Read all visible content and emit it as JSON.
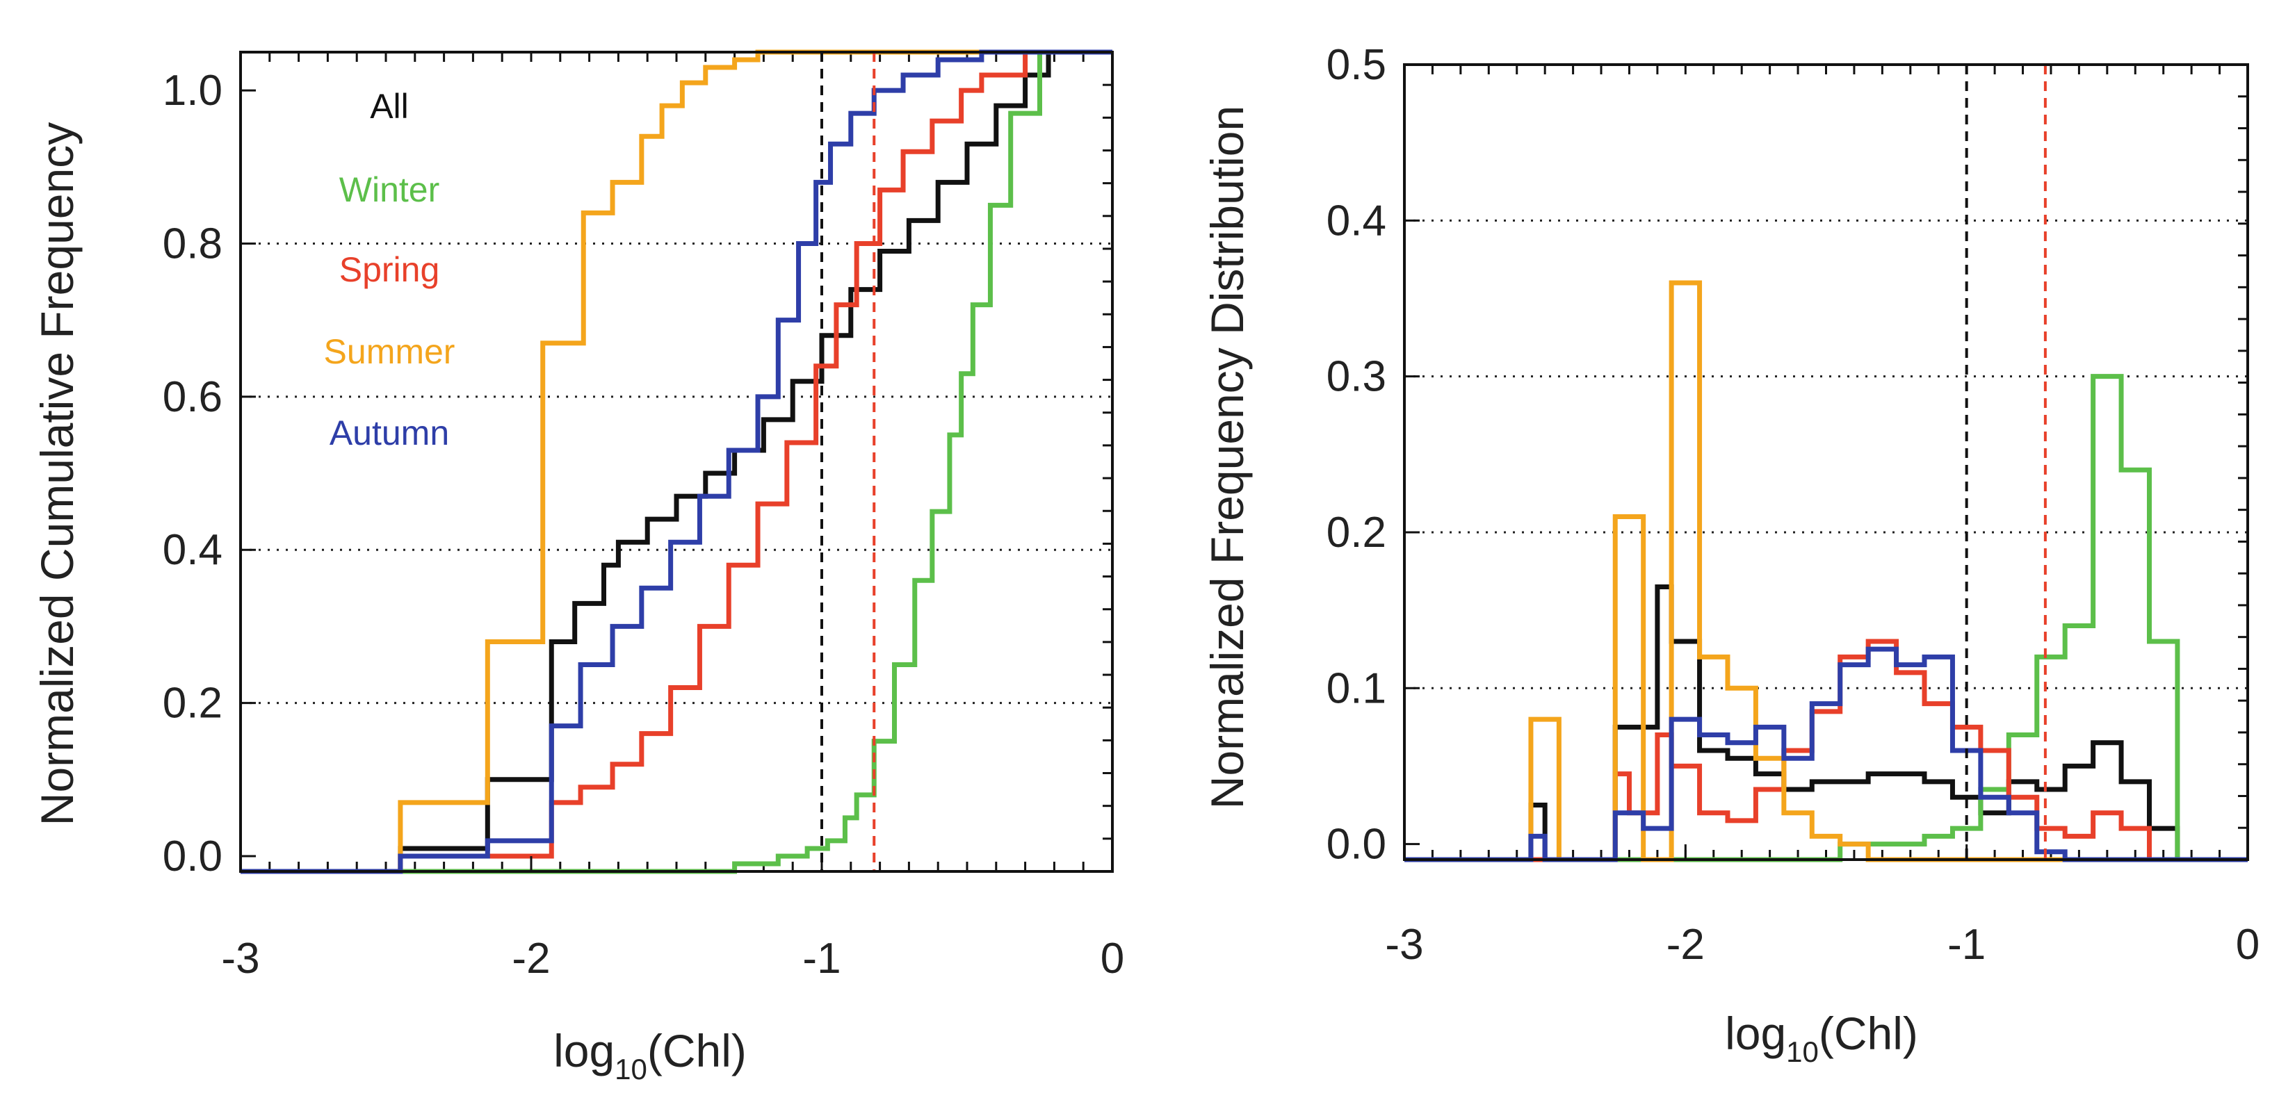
{
  "colors": {
    "All": "#111111",
    "Winter": "#5cbf4a",
    "Spring": "#e8402a",
    "Summer": "#f4a51c",
    "Autumn": "#2e3ea8"
  },
  "chart_data": [
    {
      "type": "line",
      "step": true,
      "title": "",
      "xlabel": "log",
      "xlabel_sub": "10",
      "xlabel_tail": "(Chl)",
      "ylabel": "Normalized Cumulative Frequency",
      "xlim": [
        -3,
        0
      ],
      "ylim": [
        -0.02,
        1.05
      ],
      "xticks": [
        -3,
        -2,
        -1,
        0
      ],
      "xtick_labels": [
        "-3",
        "-2",
        "-1",
        "0"
      ],
      "yticks": [
        0.0,
        0.2,
        0.4,
        0.6,
        0.8,
        1.0
      ],
      "ytick_labels": [
        "0.0",
        "0.2",
        "0.4",
        "0.6",
        "0.8",
        "1.0"
      ],
      "grid_y": [
        0.2,
        0.4,
        0.6,
        0.8
      ],
      "vlines": [
        {
          "x": -1.0,
          "color": "#111111"
        },
        {
          "x": -0.82,
          "color": "#e8402a"
        }
      ],
      "legend": [
        "All",
        "Winter",
        "Spring",
        "Summer",
        "Autumn"
      ],
      "legend_placement": "top-left",
      "series": [
        {
          "name": "All",
          "x": [
            -3,
            -2.45,
            -2.15,
            -1.93,
            -1.85,
            -1.75,
            -1.7,
            -1.6,
            -1.5,
            -1.4,
            -1.3,
            -1.2,
            -1.1,
            -1.0,
            -0.9,
            -0.8,
            -0.7,
            -0.6,
            -0.5,
            -0.4,
            -0.3,
            -0.22,
            0
          ],
          "y": [
            -0.02,
            0.01,
            0.1,
            0.28,
            0.33,
            0.38,
            0.41,
            0.44,
            0.47,
            0.5,
            0.53,
            0.57,
            0.62,
            0.68,
            0.74,
            0.79,
            0.83,
            0.88,
            0.93,
            0.98,
            1.02,
            1.05,
            1.05
          ]
        },
        {
          "name": "Winter",
          "x": [
            -3,
            -2.4,
            -2.0,
            -1.5,
            -1.3,
            -1.15,
            -1.05,
            -0.98,
            -0.92,
            -0.88,
            -0.82,
            -0.75,
            -0.68,
            -0.62,
            -0.56,
            -0.52,
            -0.48,
            -0.42,
            -0.35,
            -0.25,
            0
          ],
          "y": [
            -0.02,
            -0.02,
            -0.02,
            -0.02,
            -0.01,
            0.0,
            0.01,
            0.02,
            0.05,
            0.08,
            0.15,
            0.25,
            0.36,
            0.45,
            0.55,
            0.63,
            0.72,
            0.85,
            0.97,
            1.05,
            1.05
          ]
        },
        {
          "name": "Spring",
          "x": [
            -3,
            -2.45,
            -2.15,
            -1.93,
            -1.83,
            -1.72,
            -1.62,
            -1.52,
            -1.42,
            -1.32,
            -1.22,
            -1.12,
            -1.02,
            -0.95,
            -0.88,
            -0.8,
            -0.72,
            -0.62,
            -0.52,
            -0.45,
            -0.3,
            0
          ],
          "y": [
            -0.02,
            0.0,
            0.0,
            0.07,
            0.09,
            0.12,
            0.16,
            0.22,
            0.3,
            0.38,
            0.46,
            0.54,
            0.64,
            0.72,
            0.8,
            0.87,
            0.92,
            0.96,
            1.0,
            1.02,
            1.05,
            1.05
          ]
        },
        {
          "name": "Summer",
          "x": [
            -3,
            -2.45,
            -2.15,
            -1.96,
            -1.82,
            -1.72,
            -1.62,
            -1.55,
            -1.48,
            -1.4,
            -1.3,
            -1.22,
            -1.1,
            0
          ],
          "y": [
            -0.02,
            0.07,
            0.28,
            0.67,
            0.84,
            0.88,
            0.94,
            0.98,
            1.01,
            1.03,
            1.04,
            1.05,
            1.05,
            1.05
          ]
        },
        {
          "name": "Autumn",
          "x": [
            -3,
            -2.45,
            -2.15,
            -1.93,
            -1.83,
            -1.72,
            -1.62,
            -1.52,
            -1.42,
            -1.32,
            -1.22,
            -1.15,
            -1.08,
            -1.02,
            -0.97,
            -0.9,
            -0.82,
            -0.72,
            -0.6,
            -0.45,
            0
          ],
          "y": [
            -0.02,
            0.0,
            0.02,
            0.17,
            0.25,
            0.3,
            0.35,
            0.41,
            0.47,
            0.53,
            0.6,
            0.7,
            0.8,
            0.88,
            0.93,
            0.97,
            1.0,
            1.02,
            1.04,
            1.05,
            1.05
          ]
        }
      ]
    },
    {
      "type": "line",
      "step": true,
      "title": "",
      "xlabel": "log",
      "xlabel_sub": "10",
      "xlabel_tail": "(Chl)",
      "ylabel": "Normalized Frequency Distribution",
      "xlim": [
        -3,
        0
      ],
      "ylim": [
        -0.01,
        0.5
      ],
      "xticks": [
        -3,
        -2,
        -1,
        0
      ],
      "xtick_labels": [
        "-3",
        "-2",
        "-1",
        "0"
      ],
      "yticks": [
        0.0,
        0.1,
        0.2,
        0.3,
        0.4,
        0.5
      ],
      "ytick_labels": [
        "0.0",
        "0.1",
        "0.2",
        "0.3",
        "0.4",
        "0.5"
      ],
      "grid_y": [
        0.1,
        0.2,
        0.3,
        0.4
      ],
      "vlines": [
        {
          "x": -1.0,
          "color": "#111111"
        },
        {
          "x": -0.72,
          "color": "#e8402a"
        }
      ],
      "series": [
        {
          "name": "All",
          "x": [
            -3,
            -2.55,
            -2.5,
            -2.4,
            -2.25,
            -2.1,
            -2.05,
            -1.95,
            -1.85,
            -1.75,
            -1.65,
            -1.55,
            -1.45,
            -1.35,
            -1.25,
            -1.15,
            -1.05,
            -0.95,
            -0.85,
            -0.75,
            -0.65,
            -0.55,
            -0.45,
            -0.35,
            -0.25,
            0
          ],
          "y": [
            -0.01,
            0.025,
            -0.01,
            -0.01,
            0.075,
            0.165,
            0.13,
            0.06,
            0.055,
            0.045,
            0.035,
            0.04,
            0.04,
            0.045,
            0.045,
            0.04,
            0.03,
            0.02,
            0.04,
            0.035,
            0.05,
            0.065,
            0.04,
            0.01,
            -0.01,
            -0.01
          ]
        },
        {
          "name": "Winter",
          "x": [
            -3,
            -1.55,
            -1.45,
            -1.35,
            -1.25,
            -1.15,
            -1.05,
            -0.95,
            -0.85,
            -0.75,
            -0.65,
            -0.55,
            -0.45,
            -0.35,
            -0.25,
            0
          ],
          "y": [
            -0.01,
            -0.01,
            0.0,
            0.0,
            0.0,
            0.005,
            0.01,
            0.035,
            0.07,
            0.12,
            0.14,
            0.3,
            0.24,
            0.13,
            -0.01,
            -0.01
          ]
        },
        {
          "name": "Spring",
          "x": [
            -3,
            -2.25,
            -2.2,
            -2.1,
            -2.05,
            -1.95,
            -1.85,
            -1.75,
            -1.65,
            -1.55,
            -1.45,
            -1.35,
            -1.25,
            -1.15,
            -1.05,
            -0.95,
            -0.85,
            -0.75,
            -0.65,
            -0.55,
            -0.45,
            -0.35,
            -0.25,
            0
          ],
          "y": [
            -0.01,
            0.045,
            0.02,
            0.07,
            0.05,
            0.02,
            0.015,
            0.035,
            0.06,
            0.085,
            0.12,
            0.13,
            0.11,
            0.09,
            0.075,
            0.06,
            0.03,
            0.01,
            0.005,
            0.02,
            0.01,
            -0.01,
            -0.01,
            -0.01
          ]
        },
        {
          "name": "Summer",
          "x": [
            -3,
            -2.55,
            -2.45,
            -2.25,
            -2.15,
            -2.05,
            -1.95,
            -1.85,
            -1.75,
            -1.65,
            -1.55,
            -1.45,
            -1.35,
            -1.25,
            -1.15,
            0
          ],
          "y": [
            -0.01,
            0.08,
            -0.01,
            0.21,
            -0.01,
            0.36,
            0.12,
            0.1,
            0.055,
            0.02,
            0.005,
            0.0,
            -0.01,
            -0.01,
            -0.01,
            -0.01
          ]
        },
        {
          "name": "Autumn",
          "x": [
            -3,
            -2.55,
            -2.5,
            -2.45,
            -2.25,
            -2.15,
            -2.05,
            -1.95,
            -1.85,
            -1.75,
            -1.65,
            -1.55,
            -1.45,
            -1.35,
            -1.25,
            -1.15,
            -1.05,
            -0.95,
            -0.85,
            -0.75,
            -0.65,
            -0.55,
            0
          ],
          "y": [
            -0.01,
            0.005,
            -0.01,
            -0.01,
            0.02,
            0.01,
            0.08,
            0.07,
            0.065,
            0.075,
            0.055,
            0.09,
            0.115,
            0.125,
            0.115,
            0.12,
            0.06,
            0.03,
            0.02,
            -0.005,
            -0.01,
            -0.01,
            -0.01
          ]
        }
      ]
    }
  ]
}
